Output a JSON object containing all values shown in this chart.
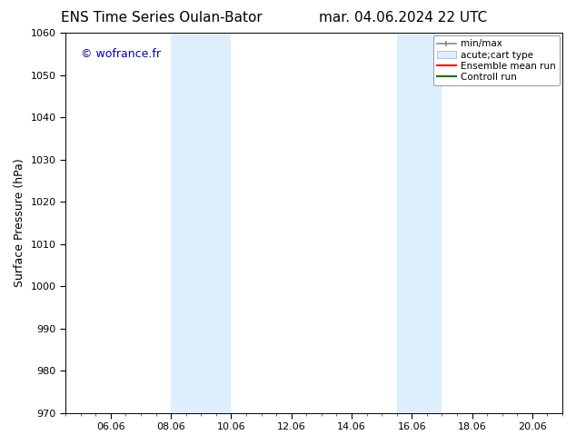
{
  "title_left": "ENS Time Series Oulan-Bator",
  "title_right": "mar. 04.06.2024 22 UTC",
  "ylabel": "Surface Pressure (hPa)",
  "ylim": [
    970,
    1060
  ],
  "yticks": [
    970,
    980,
    990,
    1000,
    1010,
    1020,
    1030,
    1040,
    1050,
    1060
  ],
  "xlim_start": 4.5,
  "xlim_end": 21.0,
  "xtick_labels": [
    "06.06",
    "08.06",
    "10.06",
    "12.06",
    "14.06",
    "16.06",
    "18.06",
    "20.06"
  ],
  "xtick_positions": [
    6.0,
    8.0,
    10.0,
    12.0,
    14.0,
    16.0,
    18.0,
    20.0
  ],
  "background_color": "#ffffff",
  "plot_bg_color": "#ffffff",
  "shaded_bands": [
    {
      "x_start": 8.0,
      "x_end": 10.0,
      "color": "#ddeeff"
    },
    {
      "x_start": 15.5,
      "x_end": 17.0,
      "color": "#ddeeff"
    }
  ],
  "watermark_text": "© wofrance.fr",
  "watermark_color": "#0000cc",
  "title_fontsize": 11,
  "axis_label_fontsize": 9,
  "tick_fontsize": 8,
  "legend_fontsize": 7.5
}
